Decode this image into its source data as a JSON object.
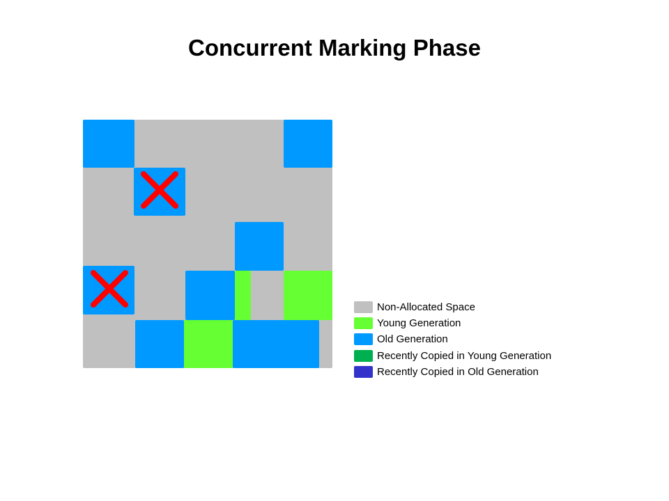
{
  "title": "Concurrent Marking Phase",
  "colors": {
    "non_allocated": "#c0c0c0",
    "young": "#66ff33",
    "old": "#0099ff",
    "recent_young": "#00b050",
    "recent_old": "#3333cc",
    "mark_x": "#ff0000"
  },
  "legend": [
    {
      "label": "Non-Allocated Space",
      "color": "#c0c0c0"
    },
    {
      "label": "Young Generation",
      "color": "#66ff33"
    },
    {
      "label": "Old Generation",
      "color": "#0099ff"
    },
    {
      "label": "Recently Copied in Young Generation",
      "color": "#00b050"
    },
    {
      "label": "Recently Copied in Old Generation",
      "color": "#3333cc"
    }
  ]
}
